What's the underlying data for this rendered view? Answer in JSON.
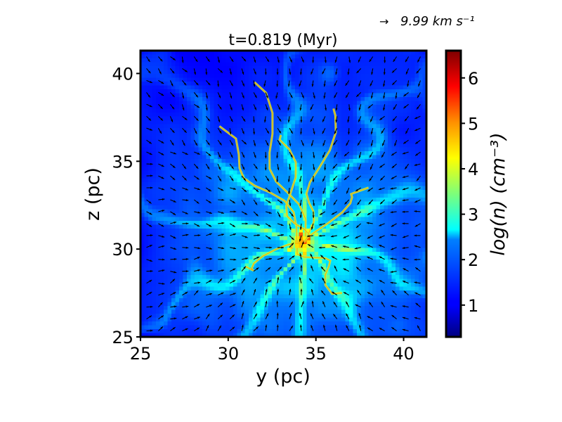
{
  "chart_data": {
    "type": "heatmap",
    "title": "t=0.819 (Myr)",
    "xlabel": "y (pc)",
    "ylabel": "z (pc)",
    "xlim": [
      25,
      41.3
    ],
    "ylim": [
      25,
      41.3
    ],
    "xticks": [
      25,
      30,
      35,
      40
    ],
    "yticks": [
      25,
      30,
      35,
      40
    ],
    "colorbar": {
      "label": "log(n) (cm⁻³)",
      "range": [
        0.3,
        6.6
      ],
      "ticks": [
        1,
        2,
        3,
        4,
        5,
        6
      ],
      "colormap": "jet"
    },
    "quiver_key": {
      "arrow": "→",
      "label": "9.99 km s⁻¹"
    },
    "field_description": {
      "background_log_n": 1.0,
      "shell_log_n": 2.2,
      "filament_log_n": 3.3,
      "dense_core_log_n": 5.8,
      "core_position_pc": [
        34.2,
        30.4
      ]
    },
    "colors": {
      "frame": "#000000",
      "quiver": "#000000",
      "background": "#ffffff"
    }
  }
}
